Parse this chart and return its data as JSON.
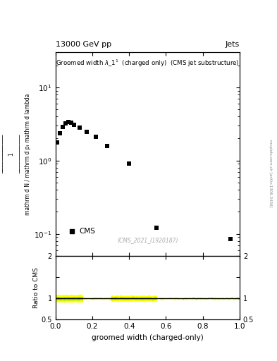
{
  "title_top_left": "13000 GeV pp",
  "title_top_right": "Jets",
  "xlabel": "groomed width (charged-only)",
  "ylabel_main_line1": "mathrm d²N",
  "ylabel_ratio": "Ratio to CMS",
  "watermark": "(CMS_2021_I1920187)",
  "arxiv_label": "mcplots.cern.ch [arXiv:1306.3436]",
  "cms_label": "CMS",
  "data_x": [
    0.01,
    0.025,
    0.04,
    0.055,
    0.07,
    0.085,
    0.1,
    0.13,
    0.17,
    0.22,
    0.28,
    0.4,
    0.55,
    0.95
  ],
  "data_y": [
    1.75,
    2.35,
    2.9,
    3.2,
    3.35,
    3.3,
    3.1,
    2.8,
    2.45,
    2.1,
    1.6,
    0.9,
    0.12,
    0.085
  ],
  "data_marker": "s",
  "data_color": "black",
  "data_markersize": 4,
  "xlim": [
    0,
    1.0
  ],
  "ylim_main": [
    0.05,
    30
  ],
  "ylim_ratio": [
    0.5,
    2.0
  ],
  "ratio_line_y": 1.0,
  "ratio_band_green_color": "#33cc33",
  "ratio_band_yellow_color": "#ffff00",
  "bg_color": "white"
}
